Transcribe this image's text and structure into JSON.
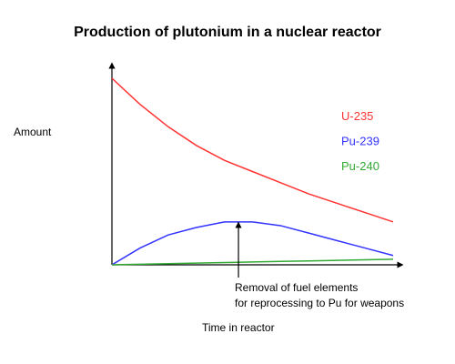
{
  "chart_data": {
    "type": "line",
    "title": "Production of plutonium in a nuclear reactor",
    "y_label": "Amount",
    "x_label": "Time in reactor",
    "x": [
      0,
      1,
      2,
      3,
      4,
      5,
      6,
      7,
      8,
      9,
      10
    ],
    "xlim": [
      0,
      10
    ],
    "ylim": [
      0,
      100
    ],
    "series": [
      {
        "name": "U-235",
        "color": "#ff3333",
        "values": [
          100,
          86,
          74,
          64,
          56,
          50,
          44,
          38,
          33,
          28,
          23
        ]
      },
      {
        "name": "Pu-239",
        "color": "#3333ff",
        "values": [
          0,
          9,
          16,
          20,
          23,
          23,
          21,
          17,
          13,
          9,
          5
        ]
      },
      {
        "name": "Pu-240",
        "color": "#33aa33",
        "values": [
          0,
          0.3,
          0.6,
          0.9,
          1.2,
          1.5,
          1.8,
          2.1,
          2.4,
          2.7,
          3
        ]
      }
    ],
    "annotation": {
      "x": 4.5,
      "y": 23.4,
      "text": [
        "Removal of fuel elements",
        "for reprocessing to Pu for weapons"
      ]
    }
  }
}
